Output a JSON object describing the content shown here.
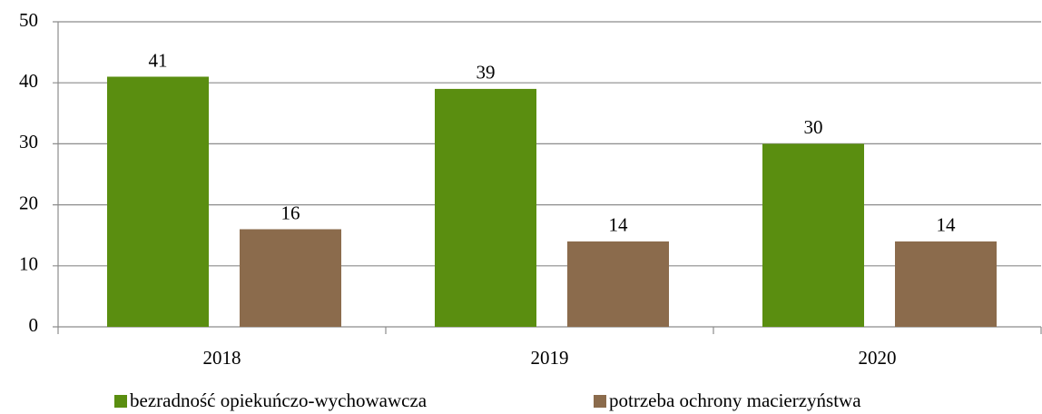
{
  "chart_data": {
    "type": "bar",
    "categories": [
      "2018",
      "2019",
      "2020"
    ],
    "series": [
      {
        "name": "bezradność opiekuńczo-wychowawcza",
        "color": "#5a8e10",
        "values": [
          41,
          39,
          30
        ]
      },
      {
        "name": "potrzeba ochrony macierzyństwa",
        "color": "#8b6b4c",
        "values": [
          16,
          14,
          14
        ]
      }
    ],
    "ylim": [
      0,
      50
    ],
    "yticks": [
      0,
      10,
      20,
      30,
      40,
      50
    ],
    "grid": true,
    "legend": "bottom"
  }
}
